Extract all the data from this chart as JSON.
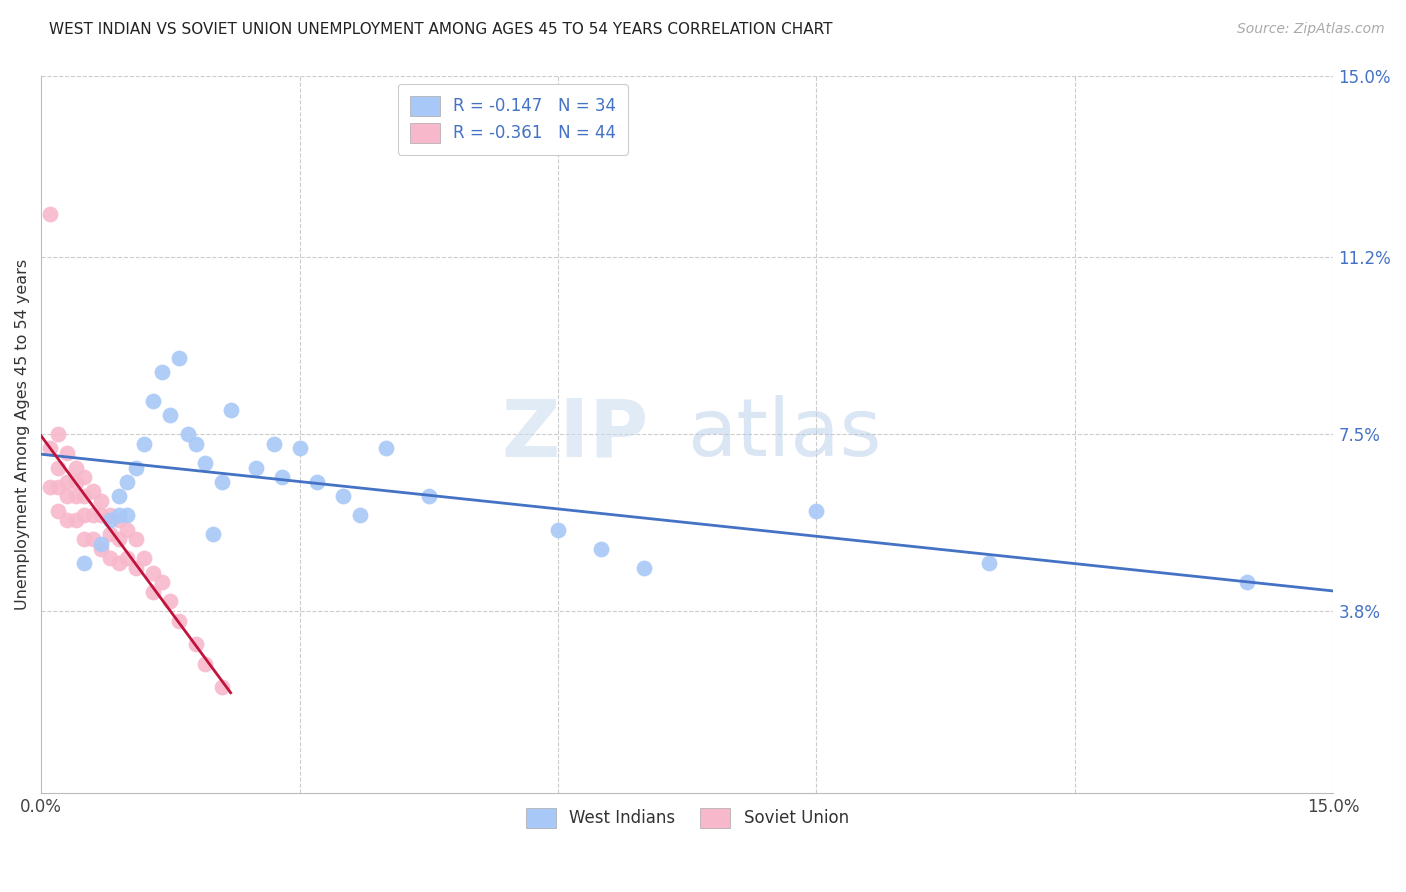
{
  "title": "WEST INDIAN VS SOVIET UNION UNEMPLOYMENT AMONG AGES 45 TO 54 YEARS CORRELATION CHART",
  "source": "Source: ZipAtlas.com",
  "ylabel": "Unemployment Among Ages 45 to 54 years",
  "x_min": 0.0,
  "x_max": 0.15,
  "y_min": 0.0,
  "y_max": 0.15,
  "x_tick_positions": [
    0.0,
    0.03,
    0.06,
    0.09,
    0.12,
    0.15
  ],
  "x_tick_labels": [
    "0.0%",
    "",
    "",
    "",
    "",
    "15.0%"
  ],
  "y_ticks_right": [
    0.0,
    0.038,
    0.075,
    0.112,
    0.15
  ],
  "y_tick_labels_right": [
    "",
    "3.8%",
    "7.5%",
    "11.2%",
    "15.0%"
  ],
  "west_indian_R": -0.147,
  "west_indian_N": 34,
  "soviet_union_R": -0.361,
  "soviet_union_N": 44,
  "west_indian_color": "#a8c8f8",
  "soviet_union_color": "#f8b8cc",
  "west_indian_line_color": "#4472c4",
  "soviet_union_line_color": "#c0143c",
  "watermark_zip": "ZIP",
  "watermark_atlas": "atlas",
  "west_indian_x": [
    0.005,
    0.007,
    0.008,
    0.009,
    0.009,
    0.01,
    0.01,
    0.011,
    0.012,
    0.013,
    0.014,
    0.015,
    0.016,
    0.017,
    0.018,
    0.019,
    0.02,
    0.021,
    0.022,
    0.025,
    0.027,
    0.028,
    0.03,
    0.032,
    0.035,
    0.037,
    0.04,
    0.045,
    0.06,
    0.065,
    0.07,
    0.09,
    0.11,
    0.14
  ],
  "west_indian_y": [
    0.048,
    0.052,
    0.057,
    0.058,
    0.062,
    0.065,
    0.058,
    0.068,
    0.073,
    0.082,
    0.088,
    0.079,
    0.091,
    0.075,
    0.073,
    0.069,
    0.054,
    0.065,
    0.08,
    0.068,
    0.073,
    0.066,
    0.072,
    0.065,
    0.062,
    0.058,
    0.072,
    0.062,
    0.055,
    0.051,
    0.047,
    0.059,
    0.048,
    0.044
  ],
  "soviet_union_x": [
    0.001,
    0.001,
    0.001,
    0.002,
    0.002,
    0.002,
    0.002,
    0.003,
    0.003,
    0.003,
    0.003,
    0.004,
    0.004,
    0.004,
    0.004,
    0.005,
    0.005,
    0.005,
    0.005,
    0.006,
    0.006,
    0.006,
    0.007,
    0.007,
    0.007,
    0.008,
    0.008,
    0.008,
    0.009,
    0.009,
    0.009,
    0.01,
    0.01,
    0.011,
    0.011,
    0.012,
    0.013,
    0.013,
    0.014,
    0.015,
    0.016,
    0.018,
    0.019,
    0.021
  ],
  "soviet_union_y": [
    0.121,
    0.072,
    0.064,
    0.075,
    0.068,
    0.064,
    0.059,
    0.071,
    0.065,
    0.062,
    0.057,
    0.068,
    0.065,
    0.062,
    0.057,
    0.066,
    0.062,
    0.058,
    0.053,
    0.063,
    0.058,
    0.053,
    0.061,
    0.058,
    0.051,
    0.058,
    0.054,
    0.049,
    0.057,
    0.053,
    0.048,
    0.055,
    0.049,
    0.053,
    0.047,
    0.049,
    0.046,
    0.042,
    0.044,
    0.04,
    0.036,
    0.031,
    0.027,
    0.022
  ]
}
